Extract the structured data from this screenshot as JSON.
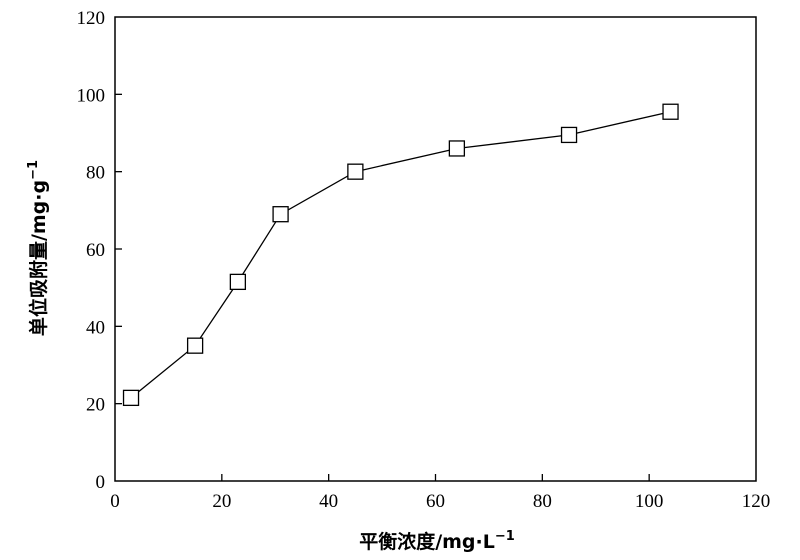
{
  "chart_data": {
    "type": "line",
    "title": "",
    "xlabel": "平衡浓度/mg·L",
    "xlabel_superscript": "−1",
    "ylabel": "单位吸附量/mg·g",
    "ylabel_superscript": "−1",
    "xlim": [
      0,
      120
    ],
    "ylim": [
      0,
      120
    ],
    "xticks": [
      0,
      20,
      40,
      60,
      80,
      100,
      120
    ],
    "yticks": [
      0,
      20,
      40,
      60,
      80,
      100,
      120
    ],
    "grid": false,
    "legend": "none",
    "marker": "open-square",
    "line_color": "#000000",
    "series": [
      {
        "x": [
          3,
          15,
          23,
          31,
          45,
          64,
          85,
          104
        ],
        "y": [
          21.5,
          35,
          51.5,
          69,
          80,
          86,
          89.5,
          95.5
        ]
      }
    ]
  }
}
